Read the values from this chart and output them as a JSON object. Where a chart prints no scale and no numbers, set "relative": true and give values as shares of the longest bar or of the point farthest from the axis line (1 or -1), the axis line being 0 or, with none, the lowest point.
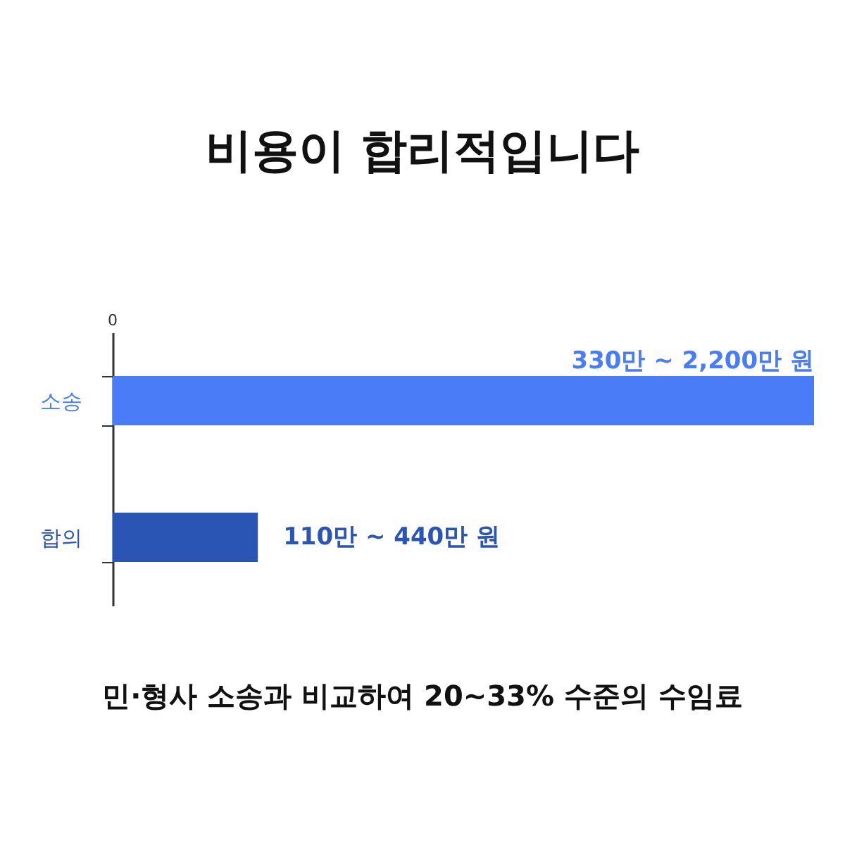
{
  "chart_data": {
    "type": "bar",
    "orientation": "horizontal",
    "relative": true,
    "title": "비용이 합리적입니다",
    "categories": [
      "소송",
      "합의"
    ],
    "values": [
      1,
      0.207
    ],
    "colors": [
      "#4a7cf7",
      "#2a55b4"
    ],
    "annotations": [
      {
        "text": "330만 ~ 2,200만 원",
        "x": 1,
        "y": "소송"
      },
      {
        "text": "110만 ~ 440만 원",
        "x": 0.207,
        "y": "합의"
      },
      "0",
      "민·형사 소송과 비교하여 20~33% 수준의 수임료"
    ]
  }
}
